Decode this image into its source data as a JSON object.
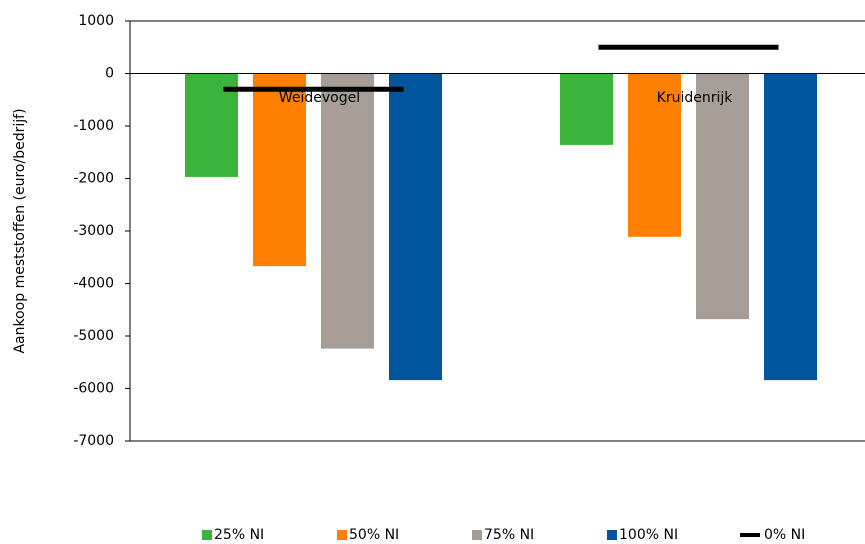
{
  "chart_data": {
    "type": "bar",
    "y_label": "Aankoop meststoffen (euro/bedrijf)",
    "categories": [
      "Weidevogel",
      "Kruidenrijk"
    ],
    "series": [
      {
        "name": "25% NI",
        "color": "#3cb43c",
        "values": [
          -1970,
          -1360
        ]
      },
      {
        "name": "50% NI",
        "color": "#ff7f00",
        "values": [
          -3670,
          -3110
        ]
      },
      {
        "name": "75% NI",
        "color": "#a69e96",
        "values": [
          -5240,
          -4680
        ]
      },
      {
        "name": "100% NI",
        "color": "#00559c",
        "values": [
          -5840,
          -5840
        ]
      },
      {
        "name": "0% NI",
        "color": "#000000",
        "style": "dash",
        "values": [
          -300,
          500
        ]
      }
    ],
    "ylim": [
      -7000,
      1000
    ],
    "yticks": [
      1000,
      0,
      -1000,
      -2000,
      -3000,
      -4000,
      -5000,
      -6000,
      -7000
    ],
    "legend": "bottom"
  }
}
